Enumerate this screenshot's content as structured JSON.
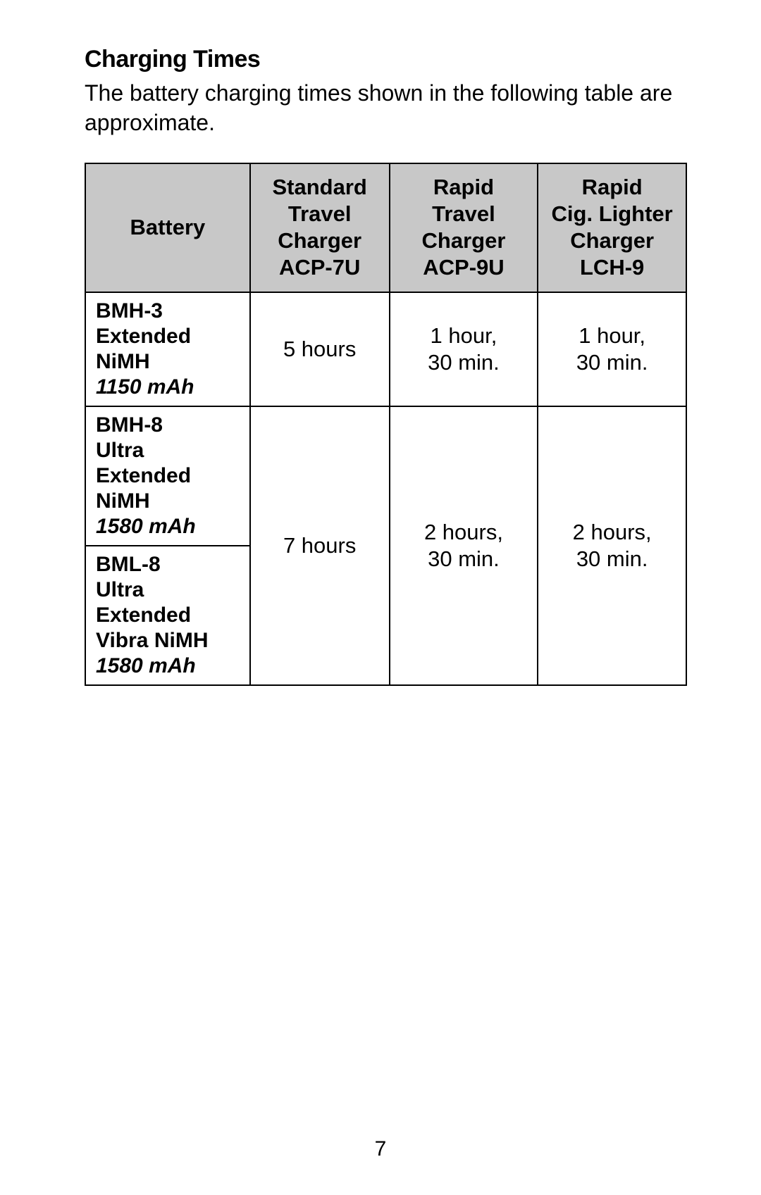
{
  "section_title": "Charging Times",
  "intro_text": "The battery charging times shown in the following table are approximate.",
  "page_number": "7",
  "table": {
    "header_bg": "#c8c8c8",
    "border_color": "#000000",
    "columns": {
      "battery": "Battery",
      "acp7u_l1": "Standard",
      "acp7u_l2": "Travel",
      "acp7u_l3": "Charger",
      "acp7u_l4": "ACP-7U",
      "acp9u_l1": "Rapid",
      "acp9u_l2": "Travel",
      "acp9u_l3": "Charger",
      "acp9u_l4": "ACP-9U",
      "lch9_l1": "Rapid",
      "lch9_l2": "Cig. Lighter",
      "lch9_l3": "Charger",
      "lch9_l4": "LCH-9"
    },
    "row1": {
      "bat_l1": "BMH-3",
      "bat_l2": "Extended",
      "bat_l3": "NiMH",
      "bat_cap": "1150 mAh",
      "acp7u": "5 hours",
      "acp9u_l1": "1 hour,",
      "acp9u_l2": "30 min.",
      "lch9_l1": "1 hour,",
      "lch9_l2": "30 min."
    },
    "row2a": {
      "bat_l1": "BMH-8",
      "bat_l2": "Ultra Extended",
      "bat_l3": "NiMH",
      "bat_cap": "1580 mAh"
    },
    "row2b": {
      "bat_l1": "BML-8",
      "bat_l2": "Ultra Extended",
      "bat_l3": "Vibra NiMH",
      "bat_cap": "1580 mAh"
    },
    "row2_vals": {
      "acp7u": "7 hours",
      "acp9u_l1": "2 hours,",
      "acp9u_l2": "30 min.",
      "lch9_l1": "2 hours,",
      "lch9_l2": "30 min."
    }
  }
}
